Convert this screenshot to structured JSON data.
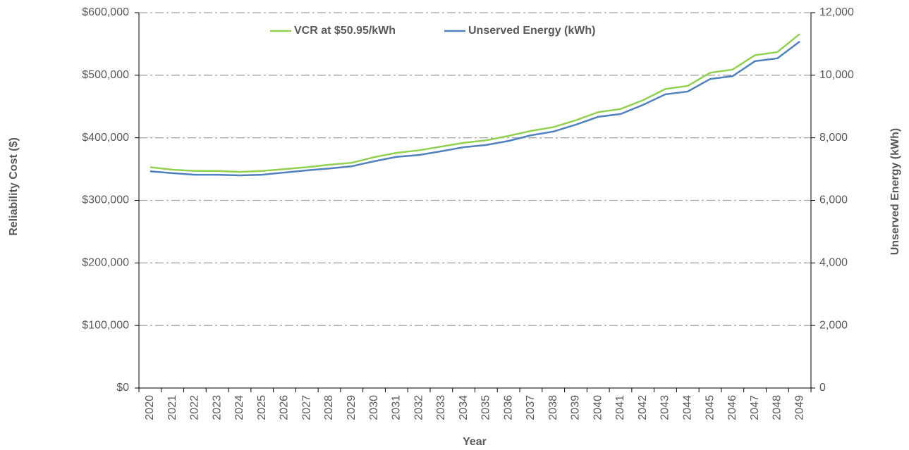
{
  "chart_data": {
    "type": "line",
    "x_label": "Year",
    "y_label": "Reliability Cost ($)",
    "y2_label": "Unserved Energy (kWh)",
    "categories": [
      "2020",
      "2021",
      "2022",
      "2023",
      "2024",
      "2025",
      "2026",
      "2027",
      "2028",
      "2029",
      "2030",
      "2031",
      "2032",
      "2033",
      "2034",
      "2035",
      "2036",
      "2037",
      "2038",
      "2039",
      "2040",
      "2041",
      "2042",
      "2043",
      "2044",
      "2045",
      "2046",
      "2047",
      "2048",
      "2049"
    ],
    "series": [
      {
        "name": "VCR at $50.95/kWh",
        "color": "#92d050",
        "axis": "y",
        "values": [
          353000,
          349000,
          347000,
          347000,
          345500,
          347000,
          350000,
          353000,
          357000,
          360000,
          369000,
          376000,
          380000,
          386000,
          392000,
          396000,
          403000,
          411000,
          417000,
          428000,
          441000,
          446000,
          460000,
          478000,
          483000,
          504000,
          509000,
          532000,
          537000,
          566000
        ]
      },
      {
        "name": "Unserved Energy (kWh)",
        "color": "#4f81bd",
        "axis": "y2",
        "values": [
          6930,
          6870,
          6820,
          6820,
          6800,
          6820,
          6890,
          6960,
          7020,
          7090,
          7250,
          7390,
          7450,
          7570,
          7700,
          7770,
          7900,
          8080,
          8200,
          8420,
          8670,
          8760,
          9050,
          9390,
          9480,
          9880,
          9970,
          10450,
          10540,
          11080
        ]
      }
    ],
    "ylim": [
      0,
      600000
    ],
    "yticks": [
      {
        "value": 0,
        "label": "$0"
      },
      {
        "value": 100000,
        "label": "$100,000"
      },
      {
        "value": 200000,
        "label": "$200,000"
      },
      {
        "value": 300000,
        "label": "$300,000"
      },
      {
        "value": 400000,
        "label": "$400,000"
      },
      {
        "value": 500000,
        "label": "$500,000"
      },
      {
        "value": 600000,
        "label": "$600,000"
      }
    ],
    "y2lim": [
      0,
      12000
    ],
    "y2ticks": [
      0,
      {
        "value": 2000,
        "label": "2,000"
      },
      {
        "value": 4000,
        "label": "4,000"
      },
      {
        "value": 6000,
        "label": "6,000"
      },
      {
        "value": 8000,
        "label": "8,000"
      },
      {
        "value": 10000,
        "label": "10,000"
      },
      {
        "value": 12000,
        "label": "12,000"
      }
    ],
    "grid": true,
    "legend": "top"
  }
}
